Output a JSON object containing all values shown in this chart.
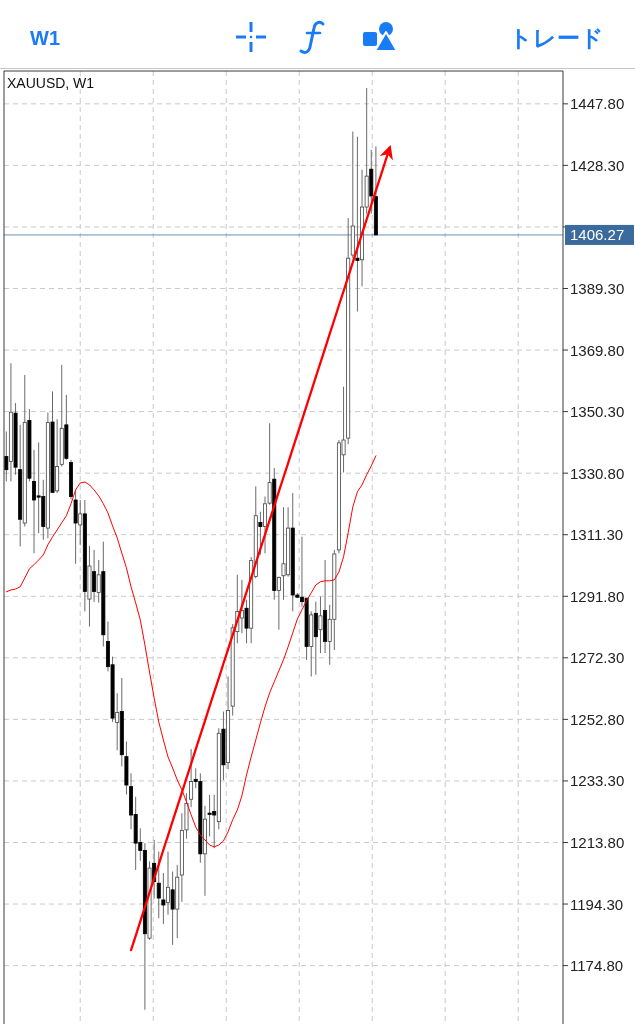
{
  "chart_data": {
    "type": "candlestick",
    "title": "XAUUSD, W1",
    "annotations": [
      "W1",
      "トレード"
    ],
    "categories": [
      null,
      null,
      null,
      null,
      null,
      null,
      null,
      null,
      null,
      null,
      null,
      null,
      null,
      null,
      null,
      null,
      null,
      null,
      null,
      null,
      null,
      null,
      null,
      null,
      null,
      null,
      null,
      null,
      null,
      null,
      null,
      null,
      null,
      null,
      null,
      null,
      null,
      null,
      null,
      null,
      null,
      null,
      null,
      null,
      null,
      null,
      null,
      null,
      null,
      null,
      null,
      null,
      null,
      null,
      null,
      null,
      null,
      null,
      null,
      null,
      null,
      null,
      null,
      null,
      null,
      null,
      null,
      null,
      null,
      null,
      null,
      null,
      null,
      null,
      null,
      null,
      null,
      null,
      null,
      null,
      null,
      null,
      null,
      null,
      null,
      null,
      null,
      null,
      null,
      null,
      null,
      null,
      null,
      null,
      null,
      null,
      null,
      null,
      null,
      null,
      null,
      null,
      null,
      null,
      null,
      null,
      null,
      null,
      null,
      null,
      null,
      null,
      null,
      null,
      null,
      null,
      null,
      null,
      null,
      null,
      null
    ],
    "ohlc": [
      [
        1336.1,
        1344.0,
        1328.2,
        1331.9
      ],
      [
        1334.5,
        1365.6,
        1328.2,
        1350.1
      ],
      [
        1349.8,
        1353.0,
        1330.3,
        1332.7
      ],
      [
        1331.9,
        1346.1,
        1307.6,
        1316.2
      ],
      [
        1315.0,
        1361.9,
        1313.9,
        1346.9
      ],
      [
        1347.5,
        1351.1,
        1328.2,
        1329.2
      ],
      [
        1328.2,
        1338.2,
        1305.4,
        1322.3
      ],
      [
        1323.6,
        1340.5,
        1311.8,
        1323.2
      ],
      [
        1323.4,
        1328.7,
        1309.7,
        1313.9
      ],
      [
        1313.4,
        1350.0,
        1310.2,
        1346.8
      ],
      [
        1347.0,
        1356.7,
        1324.5,
        1324.7
      ],
      [
        1325.2,
        1347.9,
        1324.5,
        1332.9
      ],
      [
        1333.6,
        1365.1,
        1332.9,
        1345.0
      ],
      [
        1346.1,
        1355.6,
        1335.0,
        1335.5
      ],
      [
        1334.2,
        1335.0,
        1322.5,
        1323.4
      ],
      [
        1322.3,
        1325.5,
        1302.1,
        1315.0
      ],
      [
        1314.4,
        1322.3,
        1308.0,
        1317.9
      ],
      [
        1317.9,
        1322.3,
        1287.0,
        1293.3
      ],
      [
        1290.9,
        1307.8,
        1282.2,
        1301.4
      ],
      [
        1299.6,
        1306.5,
        1290.0,
        1293.3
      ],
      [
        1293.0,
        1303.3,
        1289.8,
        1298.6
      ],
      [
        1299.6,
        1309.1,
        1275.9,
        1279.6
      ],
      [
        1277.5,
        1283.8,
        1268.0,
        1269.5
      ],
      [
        1270.1,
        1272.7,
        1252.0,
        1253.2
      ],
      [
        1251.8,
        1261.1,
        1243.0,
        1255.0
      ],
      [
        1255.3,
        1265.9,
        1237.9,
        1241.6
      ],
      [
        1241.0,
        1245.8,
        1229.0,
        1232.0
      ],
      [
        1231.5,
        1235.7,
        1218.0,
        1222.5
      ],
      [
        1222.7,
        1228.3,
        1205.1,
        1213.6
      ],
      [
        1213.8,
        1218.3,
        1208.0,
        1211.3
      ],
      [
        1211.3,
        1213.6,
        1160.8,
        1184.9
      ],
      [
        1183.5,
        1207.8,
        1183.0,
        1205.7
      ],
      [
        1207.2,
        1214.6,
        1196.0,
        1201.4
      ],
      [
        1200.9,
        1210.9,
        1189.8,
        1196.2
      ],
      [
        1195.6,
        1204.1,
        1188.0,
        1194.0
      ],
      [
        1194.8,
        1210.9,
        1190.9,
        1199.6
      ],
      [
        1198.8,
        1204.6,
        1181.4,
        1192.7
      ],
      [
        1192.7,
        1206.7,
        1183.5,
        1202.8
      ],
      [
        1203.5,
        1223.1,
        1195.0,
        1217.6
      ],
      [
        1217.8,
        1229.4,
        1215.0,
        1226.2
      ],
      [
        1227.5,
        1243.4,
        1225.0,
        1233.1
      ],
      [
        1233.8,
        1237.3,
        1231.0,
        1233.1
      ],
      [
        1233.1,
        1235.7,
        1207.4,
        1210.2
      ],
      [
        1210.2,
        1225.4,
        1196.9,
        1221.2
      ],
      [
        1223.1,
        1228.9,
        1215.7,
        1222.7
      ],
      [
        1223.6,
        1228.9,
        1212.0,
        1222.5
      ],
      [
        1220.4,
        1250.0,
        1218.0,
        1248.4
      ],
      [
        1249.7,
        1255.3,
        1233.6,
        1238.4
      ],
      [
        1239.1,
        1266.4,
        1237.0,
        1255.6
      ],
      [
        1257.0,
        1283.0,
        1254.0,
        1281.8
      ],
      [
        1280.6,
        1298.6,
        1276.9,
        1287.0
      ],
      [
        1284.9,
        1297.0,
        1280.1,
        1287.3
      ],
      [
        1288.0,
        1290.7,
        1276.9,
        1281.7
      ],
      [
        1281.7,
        1304.2,
        1276.9,
        1303.1
      ],
      [
        1298.1,
        1326.6,
        1297.5,
        1317.3
      ],
      [
        1315.2,
        1318.6,
        1305.0,
        1313.9
      ],
      [
        1313.9,
        1323.4,
        1305.4,
        1321.1
      ],
      [
        1321.3,
        1346.6,
        1320.8,
        1327.8
      ],
      [
        1328.9,
        1332.4,
        1290.7,
        1293.6
      ],
      [
        1293.6,
        1298.0,
        1281.2,
        1297.8
      ],
      [
        1298.3,
        1320.0,
        1290.7,
        1302.1
      ],
      [
        1298.6,
        1320.0,
        1298.0,
        1313.4
      ],
      [
        1313.4,
        1324.5,
        1287.0,
        1292.2
      ],
      [
        1292.2,
        1292.8,
        1291.2,
        1291.5
      ],
      [
        1291.5,
        1310.7,
        1288.5,
        1290.1
      ],
      [
        1291.2,
        1291.2,
        1271.6,
        1275.9
      ],
      [
        1275.9,
        1287.0,
        1266.4,
        1285.9
      ],
      [
        1286.4,
        1290.1,
        1266.9,
        1279.0
      ],
      [
        1281.2,
        1291.7,
        1273.8,
        1285.6
      ],
      [
        1287.3,
        1303.3,
        1273.8,
        1277.5
      ],
      [
        1277.5,
        1289.1,
        1270.1,
        1284.5
      ],
      [
        1284.5,
        1306.5,
        1274.8,
        1305.2
      ],
      [
        1306.5,
        1341.3,
        1305.4,
        1340.4
      ],
      [
        1336.6,
        1358.2,
        1331.0,
        1341.3
      ],
      [
        1341.9,
        1411.6,
        1340.0,
        1398.9
      ],
      [
        1399.9,
        1439.0,
        1399.0,
        1409.1
      ],
      [
        1398.9,
        1437.4,
        1382.0,
        1398.2
      ],
      [
        1398.4,
        1426.9,
        1390.0,
        1415.1
      ],
      [
        1415.1,
        1452.8,
        1413.0,
        1424.9
      ],
      [
        1427.1,
        1433.2,
        1413.0,
        1418.6
      ],
      [
        1418.4,
        1434.3,
        1406.27,
        1406.27
      ],
      null,
      null,
      null,
      null,
      null,
      null,
      null,
      null,
      null,
      null,
      null,
      null,
      null,
      null,
      null,
      null,
      null,
      null,
      null,
      null,
      null,
      null,
      null,
      null,
      null,
      null,
      null,
      null,
      null,
      null,
      null,
      null,
      null,
      null,
      null,
      null,
      null,
      null,
      null,
      null
    ],
    "series": [
      {
        "type": "line",
        "color": "#ff0000",
        "values": [
          1293.2,
          1293.8,
          1294.1,
          1294.8,
          1297.6,
          1300.5,
          1301.8,
          1303.3,
          1304.9,
          1308.1,
          1310.6,
          1312.8,
          1315.1,
          1317.3,
          1321.1,
          1325.5,
          1327.7,
          1328.0,
          1327.1,
          1325.5,
          1323.6,
          1321.1,
          1318.2,
          1314.1,
          1310.3,
          1305.5,
          1300.8,
          1294.8,
          1289.7,
          1284.3,
          1276.4,
          1267.8,
          1259.6,
          1252.0,
          1246.3,
          1240.9,
          1237.4,
          1233.6,
          1230.5,
          1226.7,
          1222.6,
          1218.7,
          1216.2,
          1214.6,
          1213.0,
          1212.4,
          1213.0,
          1214.3,
          1217.2,
          1221.0,
          1224.1,
          1228.6,
          1235.2,
          1240.9,
          1246.3,
          1251.7,
          1256.8,
          1261.2,
          1264.7,
          1268.2,
          1271.7,
          1275.8,
          1280.2,
          1284.6,
          1287.5,
          1290.4,
          1292.9,
          1295.4,
          1296.4,
          1296.7,
          1296.7,
          1297.0,
          1299.5,
          1304.3,
          1311.9,
          1320.1,
          1324.9,
          1327.1,
          1330.3,
          1333.1,
          1336.3,
          null,
          null,
          null,
          null,
          null,
          null,
          null,
          null,
          null,
          null,
          null,
          null,
          null,
          null,
          null,
          null,
          null,
          null,
          null,
          null,
          null,
          null,
          null,
          null,
          null,
          null,
          null,
          null,
          null,
          null,
          null,
          null,
          null,
          null,
          null,
          null,
          null,
          null,
          null,
          null
        ]
      },
      {
        "type": "line",
        "color": "#ff0000",
        "values": [
          null,
          null,
          null,
          null,
          null,
          null,
          null,
          null,
          null,
          null,
          null,
          null,
          null,
          null,
          null,
          null,
          null,
          null,
          null,
          null,
          null,
          null,
          null,
          null,
          null,
          null,
          null,
          1179.7,
          1184.2,
          1188.8,
          1193.3,
          1197.9,
          1202.4,
          1206.9,
          1211.5,
          1216.0,
          1220.6,
          1225.1,
          1229.6,
          1234.2,
          1238.7,
          1243.3,
          1247.8,
          1252.3,
          1256.9,
          1261.4,
          1265.9,
          1270.5,
          1275.0,
          1279.6,
          1284.1,
          1288.6,
          1293.2,
          1297.7,
          1302.3,
          1306.8,
          1311.3,
          1315.9,
          1320.4,
          1325.0,
          1329.5,
          1334.0,
          1338.6,
          1343.1,
          1347.6,
          1352.2,
          1356.7,
          1361.3,
          1365.8,
          1370.3,
          1374.9,
          1379.4,
          1384.0,
          1388.5,
          1393.0,
          1397.6,
          1402.1,
          1406.7,
          1411.2,
          1415.7,
          1420.3,
          1424.8,
          1429.4,
          1433.9,
          null,
          null,
          null,
          null,
          null,
          null,
          null,
          null,
          null,
          null,
          null,
          null,
          null,
          null,
          null,
          null,
          null,
          null,
          null,
          null,
          null,
          null,
          null,
          null,
          null,
          null,
          null,
          null,
          null,
          null,
          null,
          null,
          null,
          null,
          null,
          null,
          null
        ]
      }
    ],
    "ylim": [
      1156.3,
      1458.2
    ],
    "yticks": [
      {
        "value": 1447.8,
        "label": "1447.80"
      },
      {
        "value": 1428.3,
        "label": "1428.30"
      },
      {
        "value": 1408.8,
        "label": null
      },
      {
        "value": 1389.3,
        "label": "1389.30"
      },
      {
        "value": 1369.8,
        "label": "1369.80"
      },
      {
        "value": 1350.3,
        "label": "1350.30"
      },
      {
        "value": 1330.8,
        "label": "1330.80"
      },
      {
        "value": 1311.3,
        "label": "1311.30"
      },
      {
        "value": 1291.8,
        "label": "1291.80"
      },
      {
        "value": 1272.3,
        "label": "1272.30"
      },
      {
        "value": 1252.8,
        "label": "1252.80"
      },
      {
        "value": 1233.3,
        "label": "1233.30"
      },
      {
        "value": 1213.8,
        "label": "1213.80"
      },
      {
        "value": 1194.3,
        "label": "1194.30"
      },
      {
        "value": 1174.8,
        "label": "1174.80"
      }
    ],
    "ref_lines": [
      {
        "axis": "y",
        "value": 1406.27,
        "label": "1406.27",
        "color": "#3b6a9c"
      }
    ],
    "grid": true,
    "tick_labels": "y"
  }
}
